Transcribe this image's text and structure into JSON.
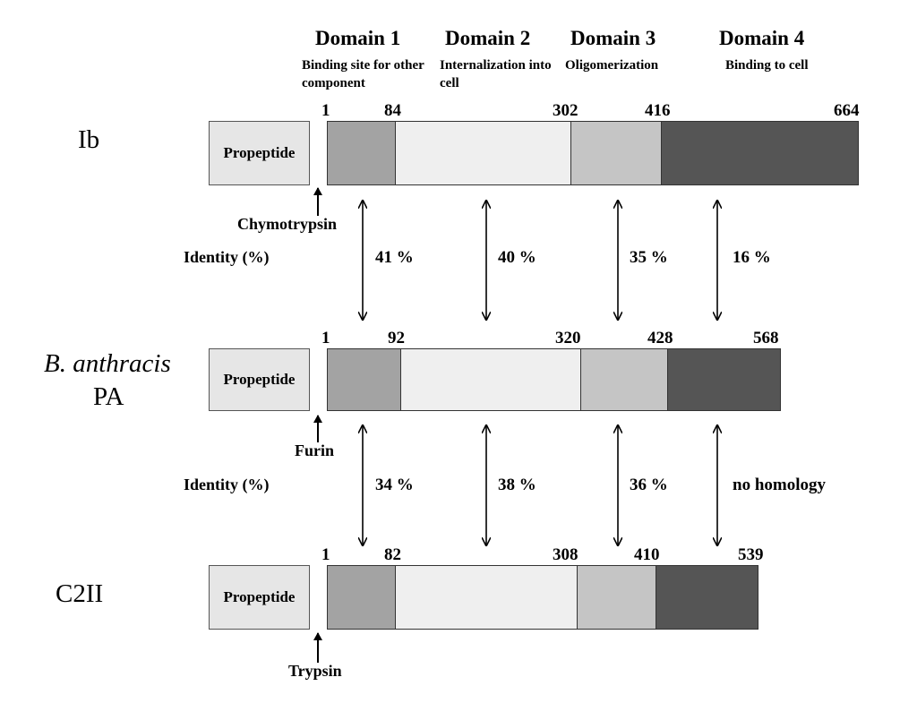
{
  "domains": [
    {
      "title": "Domain 1",
      "desc": "Binding site for other component"
    },
    {
      "title": "Domain 2",
      "desc": "Internalization into cell"
    },
    {
      "title": "Domain 3",
      "desc": "Oligomerization"
    },
    {
      "title": "Domain 4",
      "desc": "Binding to cell"
    }
  ],
  "proteins": [
    {
      "name": "Ib",
      "propeptide": "Propeptide",
      "enzyme": "Chymotrypsin",
      "boundaries": [
        "1",
        "84",
        "302",
        "416",
        "664"
      ]
    },
    {
      "name_line1": "B. anthracis",
      "name_line2": "PA",
      "propeptide": "Propeptide",
      "enzyme": "Furin",
      "boundaries": [
        "1",
        "92",
        "320",
        "428",
        "568"
      ]
    },
    {
      "name": "C2II",
      "propeptide": "Propeptide",
      "enzyme": "Trypsin",
      "boundaries": [
        "1",
        "82",
        "308",
        "410",
        "539"
      ]
    }
  ],
  "comparisons": [
    {
      "label": "Identity (%)",
      "values": [
        "41 %",
        "40 %",
        "35 %",
        "16 %"
      ]
    },
    {
      "label": "Identity (%)",
      "values": [
        "34 %",
        "38 %",
        "36 %",
        "no homology"
      ]
    }
  ],
  "colors": {
    "domain1": "#a3a3a3",
    "domain2": "#efefef",
    "domain3": "#c5c5c5",
    "domain4": "#555555",
    "propeptide": "#e6e6e6"
  }
}
